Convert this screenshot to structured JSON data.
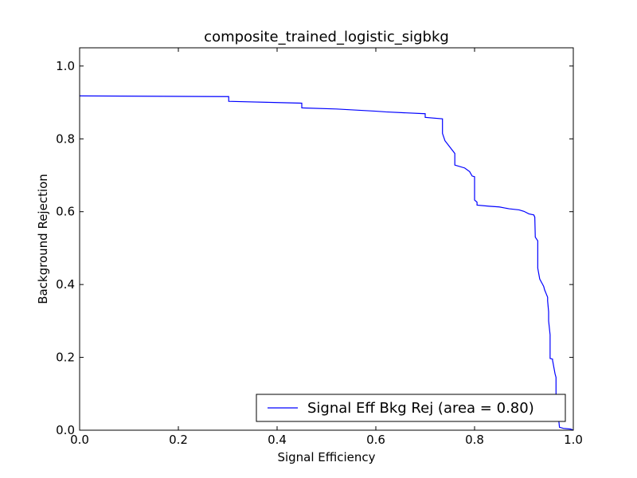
{
  "chart_data": {
    "type": "line",
    "title": "composite_trained_logistic_sigbkg",
    "xlabel": "Signal Efficiency",
    "ylabel": "Background Rejection",
    "xlim": [
      0.0,
      1.0
    ],
    "ylim": [
      0.0,
      1.05
    ],
    "xticks": [
      0.0,
      0.2,
      0.4,
      0.6,
      0.8,
      1.0
    ],
    "xtick_labels": [
      "0.0",
      "0.2",
      "0.4",
      "0.6",
      "0.8",
      "1.0"
    ],
    "yticks": [
      0.0,
      0.2,
      0.4,
      0.6,
      0.8,
      1.0
    ],
    "ytick_labels": [
      "0.0",
      "0.2",
      "0.4",
      "0.6",
      "0.8",
      "1.0"
    ],
    "grid": false,
    "legend_position": "lower-right",
    "series": [
      {
        "name": "Signal Eff Bkg Rej (area = 0.80)",
        "color": "#0000ff",
        "x": [
          0.0,
          0.302,
          0.302,
          0.45,
          0.45,
          0.52,
          0.6,
          0.62,
          0.7,
          0.7,
          0.735,
          0.735,
          0.74,
          0.76,
          0.76,
          0.78,
          0.79,
          0.795,
          0.8,
          0.8,
          0.805,
          0.805,
          0.83,
          0.85,
          0.87,
          0.89,
          0.9,
          0.91,
          0.92,
          0.922,
          0.923,
          0.928,
          0.928,
          0.932,
          0.938,
          0.94,
          0.942,
          0.945,
          0.948,
          0.948,
          0.95,
          0.95,
          0.953,
          0.953,
          0.958,
          0.958,
          0.963,
          0.965,
          0.965,
          0.968,
          0.968,
          0.972,
          0.98,
          0.995,
          1.0
        ],
        "y": [
          0.918,
          0.916,
          0.903,
          0.898,
          0.885,
          0.882,
          0.876,
          0.874,
          0.869,
          0.859,
          0.855,
          0.815,
          0.795,
          0.76,
          0.728,
          0.72,
          0.71,
          0.698,
          0.696,
          0.632,
          0.626,
          0.618,
          0.615,
          0.613,
          0.608,
          0.605,
          0.601,
          0.594,
          0.591,
          0.585,
          0.53,
          0.52,
          0.445,
          0.415,
          0.4,
          0.395,
          0.385,
          0.375,
          0.365,
          0.355,
          0.325,
          0.3,
          0.262,
          0.197,
          0.195,
          0.192,
          0.155,
          0.145,
          0.1,
          0.08,
          0.06,
          0.008,
          0.005,
          0.003,
          0.0
        ]
      }
    ]
  }
}
